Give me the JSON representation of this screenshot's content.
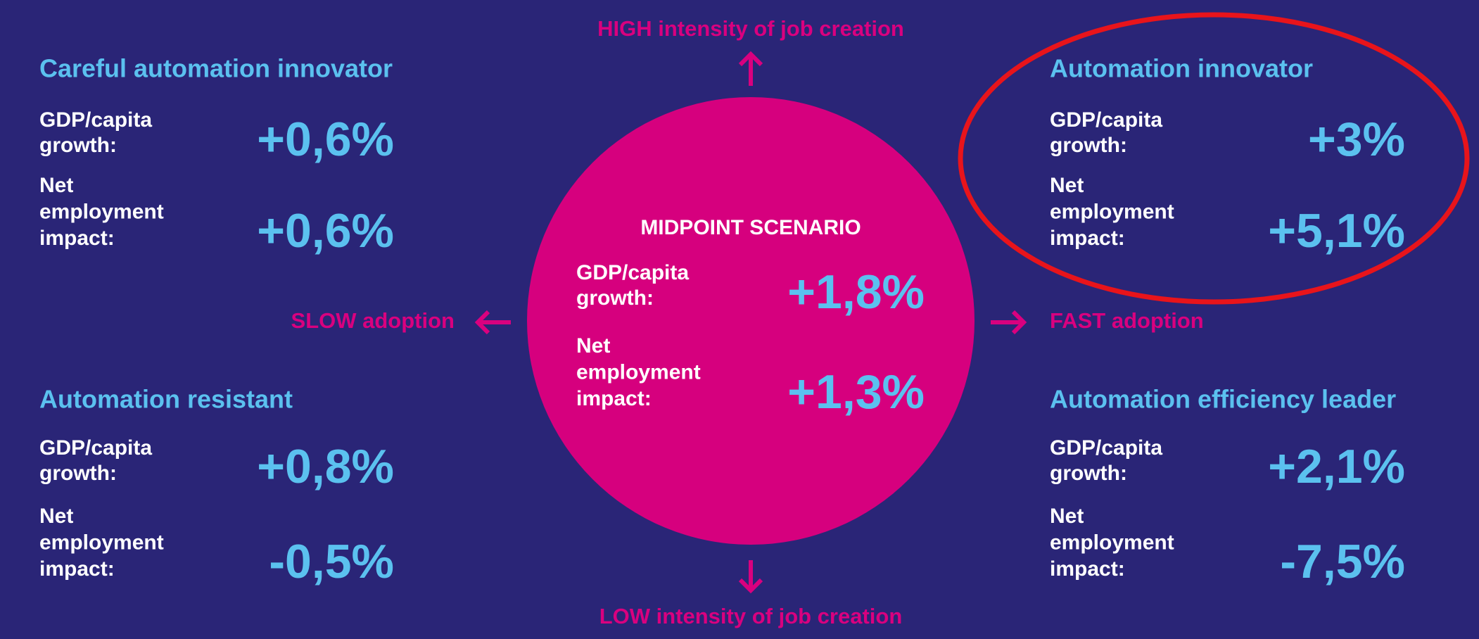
{
  "axes": {
    "top": "HIGH intensity of job creation",
    "bottom": "LOW intensity of job creation",
    "left": "SLOW adoption",
    "right": "FAST adoption"
  },
  "center": {
    "title": "MIDPOINT SCENARIO",
    "gdp_label": [
      "GDP/capita",
      "growth:"
    ],
    "gdp_value": "+1,8%",
    "employment_label": [
      "Net",
      "employment",
      "impact:"
    ],
    "employment_value": "+1,3%"
  },
  "quadrants": [
    {
      "title": "Careful automation innovator",
      "gdp_label": [
        "GDP/capita",
        "growth:"
      ],
      "gdp_value": "+0,6%",
      "employment_label": [
        "Net",
        "employment",
        "impact:"
      ],
      "employment_value": "+0,6%"
    },
    {
      "title": "Automation innovator",
      "gdp_label": [
        "GDP/capita",
        "growth:"
      ],
      "gdp_value": "+3%",
      "employment_label": [
        "Net",
        "employment",
        "impact:"
      ],
      "employment_value": "+5,1%"
    },
    {
      "title": "Automation resistant",
      "gdp_label": [
        "GDP/capita",
        "growth:"
      ],
      "gdp_value": "+0,8%",
      "employment_label": [
        "Net",
        "employment",
        "impact:"
      ],
      "employment_value": "-0,5%"
    },
    {
      "title": "Automation efficiency leader",
      "gdp_label": [
        "GDP/capita",
        "growth:"
      ],
      "gdp_value": "+2,1%",
      "employment_label": [
        "Net",
        "employment",
        "impact:"
      ],
      "employment_value": "-7,5%"
    }
  ]
}
